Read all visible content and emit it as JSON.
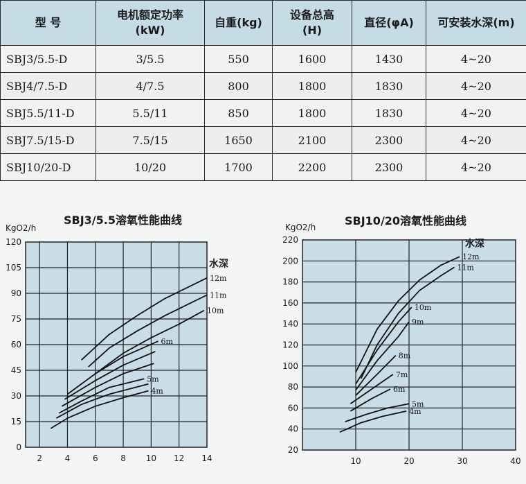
{
  "table": {
    "headers": [
      "型 号",
      "电机额定功率\n(kW)",
      "自重(kg)",
      "设备总高\n(H)",
      "直径(φA)",
      "可安装水深(m)"
    ],
    "rows": [
      [
        "SBJ3/5.5-D",
        "3/5.5",
        "550",
        "1600",
        "1430",
        "4~20"
      ],
      [
        "SBJ4/7.5-D",
        "4/7.5",
        "800",
        "1800",
        "1830",
        "4~20"
      ],
      [
        "SBJ5.5/11-D",
        "5.5/11",
        "850",
        "1800",
        "1830",
        "4~20"
      ],
      [
        "SBJ7.5/15-D",
        "7.5/15",
        "1650",
        "2100",
        "2300",
        "4~20"
      ],
      [
        "SBJ10/20-D",
        "10/20",
        "1700",
        "2200",
        "2300",
        "4~20"
      ]
    ]
  },
  "chart_data": [
    {
      "type": "line",
      "title": "SBJ3/5.5溶氧性能曲线",
      "ylabel": "KgO2/h",
      "legend_title": "水深",
      "xlim": [
        1,
        14
      ],
      "ylim": [
        0,
        120
      ],
      "xticks": [
        2,
        4,
        6,
        8,
        10,
        12,
        14
      ],
      "yticks": [
        0,
        15,
        30,
        45,
        60,
        75,
        90,
        105,
        120
      ],
      "grid": true,
      "series": [
        {
          "name": "12m",
          "x": [
            5.0,
            7,
            9,
            11,
            13,
            14.0
          ],
          "y": [
            51,
            66,
            77,
            87,
            95,
            99
          ]
        },
        {
          "name": "11m",
          "x": [
            5.5,
            7,
            9,
            11,
            13,
            14.0
          ],
          "y": [
            47,
            58,
            68,
            77,
            85,
            89
          ]
        },
        {
          "name": "10m",
          "x": [
            6.0,
            8,
            10,
            12,
            13.8
          ],
          "y": [
            43,
            55,
            64,
            72,
            80
          ]
        },
        {
          "name": "6m",
          "x": [
            4.0,
            6,
            8,
            10.5
          ],
          "y": [
            31,
            43,
            53,
            62
          ]
        },
        {
          "name": "",
          "x": [
            3.8,
            6,
            8,
            10.3
          ],
          "y": [
            28,
            39,
            48,
            56
          ]
        },
        {
          "name": "",
          "x": [
            3.6,
            6,
            8,
            10.2
          ],
          "y": [
            24,
            35,
            43,
            49
          ]
        },
        {
          "name": "5m",
          "x": [
            3.4,
            5,
            7,
            9.5
          ],
          "y": [
            20,
            27,
            35,
            40
          ]
        },
        {
          "name": "",
          "x": [
            3.2,
            5,
            7,
            9.8
          ],
          "y": [
            17,
            25,
            31,
            37
          ]
        },
        {
          "name": "4m",
          "x": [
            2.8,
            4,
            6,
            8,
            9.8
          ],
          "y": [
            11,
            17,
            24,
            29,
            33
          ]
        }
      ]
    },
    {
      "type": "line",
      "title": "SBJ10/20溶氧性能曲线",
      "ylabel": "KgO2/h",
      "legend_title": "水深",
      "xlim": [
        0,
        40
      ],
      "ylim": [
        20,
        220
      ],
      "xticks": [
        10,
        20,
        30,
        40
      ],
      "yticks": [
        20,
        40,
        60,
        80,
        100,
        120,
        140,
        160,
        180,
        200,
        220
      ],
      "grid": true,
      "series": [
        {
          "name": "12m",
          "x": [
            10,
            14,
            18,
            22,
            26,
            29.5
          ],
          "y": [
            94,
            135,
            162,
            182,
            196,
            204
          ]
        },
        {
          "name": "11m",
          "x": [
            11,
            14,
            18,
            22,
            26,
            28.5
          ],
          "y": [
            88,
            120,
            150,
            172,
            186,
            194
          ]
        },
        {
          "name": "10m",
          "x": [
            10,
            14,
            18,
            20.5
          ],
          "y": [
            83,
            115,
            142,
            156
          ]
        },
        {
          "name": "9m",
          "x": [
            10,
            14,
            18,
            20.0
          ],
          "y": [
            77,
            105,
            128,
            142
          ]
        },
        {
          "name": "8m",
          "x": [
            10,
            14,
            17.5
          ],
          "y": [
            72,
            92,
            110
          ]
        },
        {
          "name": "7m",
          "x": [
            9,
            13,
            17.0
          ],
          "y": [
            64,
            78,
            92
          ]
        },
        {
          "name": "6m",
          "x": [
            9,
            13,
            16.5
          ],
          "y": [
            57,
            69,
            78
          ]
        },
        {
          "name": "5m",
          "x": [
            8,
            12,
            16,
            20.0
          ],
          "y": [
            47,
            54,
            60,
            64
          ]
        },
        {
          "name": "4m",
          "x": [
            7,
            11,
            15,
            19.5
          ],
          "y": [
            37,
            46,
            52,
            57
          ]
        }
      ]
    }
  ]
}
